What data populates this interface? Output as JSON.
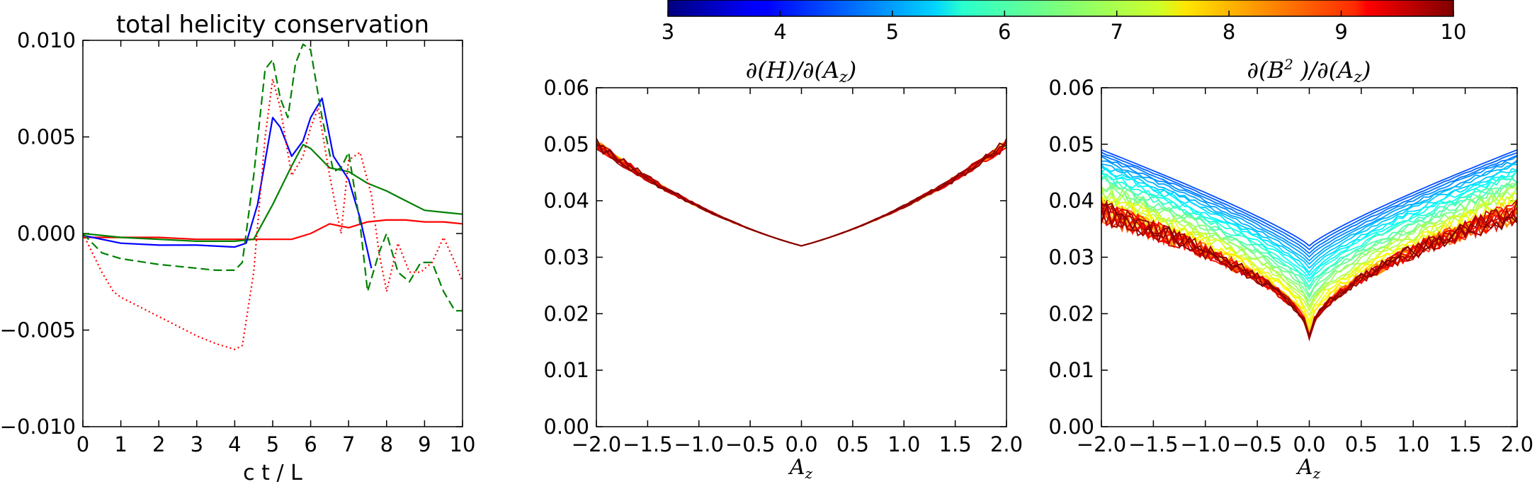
{
  "colorbar": {
    "ticks": [
      "3",
      "4",
      "5",
      "6",
      "7",
      "8",
      "9",
      "10"
    ],
    "range": [
      3,
      10
    ],
    "colormap": "jet"
  },
  "chart_data": [
    {
      "type": "line",
      "title": "total helicity conservation",
      "xlabel": "c t / L",
      "ylabel": "",
      "xlim": [
        0,
        10
      ],
      "ylim": [
        -0.01,
        0.01
      ],
      "xticks": [
        "0",
        "1",
        "2",
        "3",
        "4",
        "5",
        "6",
        "7",
        "8",
        "9",
        "10"
      ],
      "yticks": [
        "−0.010",
        "−0.005",
        "0.000",
        "0.005",
        "0.010"
      ],
      "series": [
        {
          "color": "#ff0000",
          "style": "solid",
          "x": [
            0,
            1,
            2,
            3,
            4,
            4.5,
            5,
            5.5,
            6,
            6.5,
            7,
            7.5,
            8,
            8.5,
            9,
            9.5,
            10
          ],
          "y": [
            -0.0002,
            -0.0002,
            -0.0002,
            -0.0003,
            -0.0003,
            -0.0003,
            -0.0003,
            -0.0003,
            0.0,
            0.0005,
            0.0003,
            0.0006,
            0.0007,
            0.0007,
            0.0006,
            0.0006,
            0.0005
          ]
        },
        {
          "color": "#008000",
          "style": "solid",
          "x": [
            0,
            1,
            2,
            3,
            4,
            4.5,
            5,
            5.5,
            5.8,
            6,
            6.5,
            7,
            7.5,
            8,
            8.5,
            9,
            9.5,
            10
          ],
          "y": [
            0.0,
            -0.0002,
            -0.0003,
            -0.0004,
            -0.0004,
            -0.0003,
            0.0015,
            0.0035,
            0.0046,
            0.0044,
            0.0034,
            0.0032,
            0.0026,
            0.0022,
            0.0017,
            0.0012,
            0.0011,
            0.001
          ]
        },
        {
          "color": "#0000ff",
          "style": "solid",
          "x": [
            0,
            1,
            2,
            3,
            4,
            4.3,
            4.6,
            5.0,
            5.2,
            5.5,
            5.8,
            6.0,
            6.3,
            6.6,
            7.0,
            7.3,
            7.6
          ],
          "y": [
            -0.0001,
            -0.0005,
            -0.0006,
            -0.0006,
            -0.0007,
            -0.0005,
            0.0015,
            0.006,
            0.0055,
            0.004,
            0.0048,
            0.006,
            0.007,
            0.004,
            0.0028,
            0.0008,
            -0.0018
          ]
        },
        {
          "color": "#008000",
          "style": "dashed",
          "x": [
            0,
            0.5,
            1,
            2,
            3,
            3.5,
            4,
            4.2,
            4.5,
            4.8,
            5.0,
            5.2,
            5.4,
            5.6,
            5.8,
            6.0,
            6.3,
            6.6,
            6.8,
            7.0,
            7.3,
            7.5,
            7.8,
            8.0,
            8.3,
            8.6,
            8.9,
            9.2,
            9.5,
            9.8,
            10
          ],
          "y": [
            0.0,
            -0.001,
            -0.0013,
            -0.0016,
            -0.0018,
            -0.0019,
            -0.0019,
            -0.0015,
            0.003,
            0.0085,
            0.009,
            0.007,
            0.006,
            0.0088,
            0.0098,
            0.0095,
            0.006,
            0.0032,
            0.0034,
            0.0042,
            0.0005,
            -0.003,
            -0.001,
            0.0,
            -0.002,
            -0.0025,
            -0.0015,
            -0.0015,
            -0.003,
            -0.004,
            -0.004
          ]
        },
        {
          "color": "#ff0000",
          "style": "dotted",
          "x": [
            0,
            0.2,
            0.5,
            0.8,
            1,
            1.5,
            2,
            2.5,
            3,
            3.5,
            4,
            4.2,
            4.5,
            4.8,
            5.0,
            5.2,
            5.5,
            5.8,
            6.0,
            6.2,
            6.5,
            6.8,
            7.0,
            7.3,
            7.6,
            7.8,
            8.0,
            8.3,
            8.6,
            8.9,
            9.2,
            9.5,
            9.8,
            10
          ],
          "y": [
            0.0,
            -0.0008,
            -0.002,
            -0.003,
            -0.0033,
            -0.0038,
            -0.0043,
            -0.0048,
            -0.0053,
            -0.0057,
            -0.006,
            -0.0058,
            -0.002,
            0.005,
            0.008,
            0.0065,
            0.003,
            0.004,
            0.0055,
            0.0065,
            0.003,
            0.0,
            0.0038,
            0.0042,
            0.002,
            -0.001,
            -0.003,
            -0.0005,
            -0.002,
            -0.002,
            -0.0015,
            -0.0002,
            -0.0015,
            -0.0025
          ]
        }
      ]
    },
    {
      "type": "line",
      "title": "∂(H)/∂(Az)",
      "xlabel": "Az",
      "ylabel": "",
      "xlim": [
        -2,
        2
      ],
      "ylim": [
        0,
        0.06
      ],
      "xticks": [
        "−2.0",
        "−1.5",
        "−1.0",
        "−0.5",
        "0.0",
        "0.5",
        "1.0",
        "1.5",
        "2.0"
      ],
      "yticks": [
        "0.00",
        "0.01",
        "0.02",
        "0.03",
        "0.04",
        "0.05",
        "0.06"
      ],
      "series_count": 40,
      "color_param_range": [
        3,
        10
      ],
      "curve": {
        "center": 0.032,
        "edge": 0.05,
        "shape": "v-shaped, nearly identical for all parameter values"
      }
    },
    {
      "type": "line",
      "title": "∂(B²)/∂(Az)",
      "xlabel": "Az",
      "ylabel": "",
      "xlim": [
        -2,
        2
      ],
      "ylim": [
        0,
        0.06
      ],
      "xticks": [
        "−2.0",
        "−1.5",
        "−1.0",
        "−0.5",
        "0.0",
        "0.5",
        "1.0",
        "1.5",
        "2.0"
      ],
      "yticks": [
        "0.00",
        "0.01",
        "0.02",
        "0.03",
        "0.04",
        "0.05",
        "0.06"
      ],
      "series_count": 40,
      "color_param_range": [
        3,
        10
      ],
      "curve": {
        "center_at_param_3": 0.032,
        "center_at_param_10": 0.016,
        "edge_at_param_3": 0.05,
        "edge_at_param_10": 0.038,
        "shape": "v-shaped, deepening with parameter"
      }
    }
  ]
}
